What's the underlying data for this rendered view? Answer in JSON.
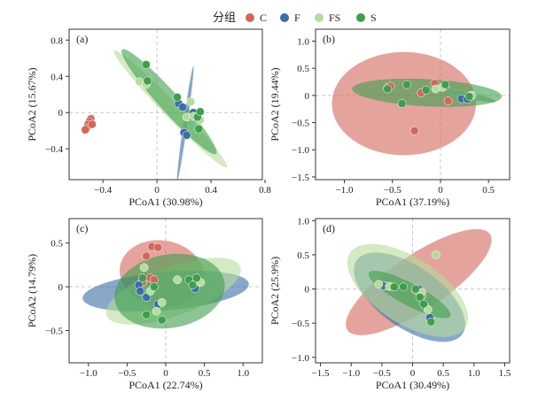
{
  "legend": {
    "title": "分组",
    "items": [
      {
        "label": "C",
        "color": "#d2675c"
      },
      {
        "label": "F",
        "color": "#3a6ea5"
      },
      {
        "label": "FS",
        "color": "#b6dc9b"
      },
      {
        "label": "S",
        "color": "#3f9e4c"
      }
    ]
  },
  "chart_data": [
    {
      "type": "scatter",
      "panel": "(a)",
      "xlabel": "PCoA1 (30.98%)",
      "ylabel": "PCoA2 (15.67%)",
      "xlim": [
        -0.65,
        0.78
      ],
      "ylim": [
        -0.74,
        0.92
      ],
      "xticks": [
        -0.4,
        0,
        0.4,
        0.8
      ],
      "yticks": [
        -0.4,
        0,
        0.4,
        0.8
      ],
      "xtick_labels": [
        "−0.4",
        "0",
        "0.4",
        "0.8"
      ],
      "ytick_labels": [
        "−0.4",
        "0",
        "0.4",
        "0.8"
      ],
      "grid": false,
      "series": [
        {
          "label": "C",
          "points": [
            [
              -0.49,
              -0.07
            ],
            [
              -0.5,
              -0.1
            ],
            [
              -0.51,
              -0.13
            ],
            [
              -0.52,
              -0.17
            ],
            [
              -0.53,
              -0.19
            ],
            [
              -0.48,
              -0.13
            ]
          ],
          "ellipse": {
            "cx": -0.505,
            "cy": -0.13,
            "a": 0.085,
            "b": 0.018,
            "angle": 63
          }
        },
        {
          "label": "F",
          "points": [
            [
              0.16,
              0.1
            ],
            [
              0.19,
              0.06
            ],
            [
              0.2,
              -0.22
            ],
            [
              0.22,
              -0.25
            ],
            [
              0.24,
              -0.05
            ],
            [
              0.27,
              0.0
            ]
          ],
          "ellipse": {
            "cx": 0.21,
            "cy": -0.12,
            "a": 0.43,
            "b": 0.022,
            "angle": 82
          }
        },
        {
          "label": "FS",
          "points": [
            [
              -0.13,
              0.34
            ],
            [
              -0.08,
              0.31
            ],
            [
              0.22,
              -0.05
            ],
            [
              0.27,
              -0.04
            ],
            [
              0.32,
              -0.08
            ],
            [
              0.25,
              0.12
            ]
          ],
          "ellipse": {
            "cx": 0.1,
            "cy": 0.04,
            "a": 0.6,
            "b": 0.085,
            "angle": -46
          }
        },
        {
          "label": "S",
          "points": [
            [
              -0.08,
              0.53
            ],
            [
              -0.07,
              0.35
            ],
            [
              0.15,
              0.17
            ],
            [
              0.3,
              -0.05
            ],
            [
              0.31,
              -0.18
            ],
            [
              0.32,
              0.01
            ]
          ],
          "ellipse": {
            "cx": 0.09,
            "cy": 0.12,
            "a": 0.52,
            "b": 0.11,
            "angle": -48
          }
        }
      ]
    },
    {
      "type": "scatter",
      "panel": "(b)",
      "xlabel": "PCoA1 (37.19%)",
      "ylabel": "PCoA2 (19.44%)",
      "xlim": [
        -1.3,
        0.72
      ],
      "ylim": [
        -1.55,
        1.22
      ],
      "xticks": [
        -1.0,
        -0.5,
        0,
        0.5
      ],
      "yticks": [
        -1.5,
        -1.0,
        -0.5,
        0,
        0.5,
        1.0
      ],
      "xtick_labels": [
        "−1.0",
        "−0.5",
        "0",
        "0.5"
      ],
      "ytick_labels": [
        "−1.5",
        "−1.0",
        "−0.5",
        "0",
        "0.5",
        "1.0"
      ],
      "grid": false,
      "series": [
        {
          "label": "C",
          "points": [
            [
              -0.55,
              0.15
            ],
            [
              -0.52,
              0.17
            ],
            [
              -0.06,
              0.22
            ],
            [
              0.08,
              -0.1
            ],
            [
              -0.27,
              -0.65
            ],
            [
              -0.2,
              0.05
            ]
          ],
          "ellipse": {
            "cx": -0.38,
            "cy": -0.15,
            "a": 0.75,
            "b": 0.95,
            "angle": 0
          }
        },
        {
          "label": "F",
          "points": [
            [
              0.05,
              0.17
            ],
            [
              0.22,
              -0.06
            ],
            [
              0.28,
              -0.07
            ],
            [
              0.33,
              0.0
            ]
          ],
          "ellipse": {
            "cx": 0.28,
            "cy": 0.0,
            "a": 0.3,
            "b": 0.05,
            "angle": -12
          }
        },
        {
          "label": "FS",
          "points": [
            [
              0.02,
              0.15
            ],
            [
              0.32,
              0.0
            ],
            [
              -0.05,
              0.12
            ]
          ],
          "ellipse": {
            "cx": 0.25,
            "cy": 0.02,
            "a": 0.3,
            "b": 0.08,
            "angle": -12
          }
        },
        {
          "label": "S",
          "points": [
            [
              -0.55,
              0.12
            ],
            [
              -0.35,
              0.2
            ],
            [
              -0.15,
              0.1
            ],
            [
              -0.4,
              -0.15
            ],
            [
              0.05,
              0.2
            ],
            [
              0.3,
              -0.02
            ]
          ],
          "ellipse": {
            "cx": -0.14,
            "cy": 0.05,
            "a": 0.78,
            "b": 0.25,
            "angle": -3
          }
        }
      ]
    },
    {
      "type": "scatter",
      "panel": "(c)",
      "xlabel": "PCoA1 (22.74%)",
      "ylabel": "PCoA2 (14.79%)",
      "xlim": [
        -1.25,
        1.25
      ],
      "ylim": [
        -0.87,
        0.78
      ],
      "xticks": [
        -1.0,
        -0.5,
        0,
        0.5,
        1.0
      ],
      "yticks": [
        -0.5,
        0,
        0.5
      ],
      "xtick_labels": [
        "−1.0",
        "−0.5",
        "0",
        "0.5",
        "1.0"
      ],
      "ytick_labels": [
        "−0.5",
        "0",
        "0.5"
      ],
      "grid": false,
      "series": [
        {
          "label": "C",
          "points": [
            [
              -0.18,
              0.46
            ],
            [
              -0.1,
              0.45
            ],
            [
              -0.25,
              0.35
            ],
            [
              -0.2,
              0.1
            ],
            [
              -0.15,
              0.08
            ],
            [
              -0.3,
              0.05
            ]
          ],
          "ellipse": {
            "cx": -0.05,
            "cy": 0.15,
            "a": 0.55,
            "b": 0.38,
            "angle": -10
          }
        },
        {
          "label": "F",
          "points": [
            [
              -0.35,
              0.02
            ],
            [
              -0.33,
              -0.05
            ],
            [
              -0.25,
              -0.12
            ],
            [
              0.42,
              0.05
            ],
            [
              0.38,
              -0.02
            ],
            [
              -0.1,
              -0.2
            ]
          ],
          "ellipse": {
            "cx": 0.0,
            "cy": -0.05,
            "a": 1.08,
            "b": 0.22,
            "angle": 5
          }
        },
        {
          "label": "FS",
          "points": [
            [
              -0.28,
              0.22
            ],
            [
              -0.2,
              -0.05
            ],
            [
              -0.05,
              -0.18
            ],
            [
              0.15,
              0.08
            ],
            [
              0.45,
              0.05
            ],
            [
              -0.12,
              -0.28
            ]
          ],
          "ellipse": {
            "cx": 0.1,
            "cy": -0.05,
            "a": 0.92,
            "b": 0.28,
            "angle": 20
          }
        },
        {
          "label": "S",
          "points": [
            [
              -0.3,
              0.1
            ],
            [
              -0.15,
              0.0
            ],
            [
              0.3,
              0.08
            ],
            [
              0.35,
              0.02
            ],
            [
              -0.25,
              -0.32
            ],
            [
              -0.05,
              -0.38
            ],
            [
              0.4,
              0.1
            ]
          ],
          "ellipse": {
            "cx": 0.05,
            "cy": -0.05,
            "a": 0.72,
            "b": 0.42,
            "angle": 10
          }
        }
      ]
    },
    {
      "type": "scatter",
      "panel": "(d)",
      "xlabel": "PCoA1 (30.49%)",
      "ylabel": "PCoA2 (25.9%)",
      "xlim": [
        -1.58,
        1.58
      ],
      "ylim": [
        -1.08,
        1.03
      ],
      "xticks": [
        -1.5,
        -1.0,
        -0.5,
        0,
        0.5,
        1.0,
        1.5
      ],
      "yticks": [
        -1.0,
        -0.5,
        0,
        0.5,
        1.0
      ],
      "xtick_labels": [
        "−1.5",
        "−1.0",
        "−0.5",
        "0",
        "0.5",
        "1.0",
        "1.5"
      ],
      "ytick_labels": [
        "−1.0",
        "−0.5",
        "0",
        "0.5",
        "1.0"
      ],
      "grid": false,
      "series": [
        {
          "label": "C",
          "points": [
            [
              -0.45,
              0.05
            ],
            [
              0.05,
              -0.02
            ],
            [
              0.15,
              -0.1
            ]
          ],
          "ellipse": {
            "cx": 0.1,
            "cy": 0.1,
            "a": 1.4,
            "b": 0.4,
            "angle": 34
          }
        },
        {
          "label": "F",
          "points": [
            [
              -0.48,
              0.05
            ],
            [
              -0.35,
              0.03
            ],
            [
              0.2,
              -0.25
            ],
            [
              0.28,
              -0.42
            ],
            [
              0.1,
              0.0
            ]
          ],
          "ellipse": {
            "cx": -0.05,
            "cy": -0.12,
            "a": 1.05,
            "b": 0.45,
            "angle": -35
          }
        },
        {
          "label": "FS",
          "points": [
            [
              -0.55,
              0.07
            ],
            [
              -0.38,
              0.04
            ],
            [
              0.38,
              0.5
            ],
            [
              0.15,
              -0.05
            ],
            [
              0.25,
              -0.3
            ]
          ],
          "ellipse": {
            "cx": -0.08,
            "cy": -0.02,
            "a": 1.12,
            "b": 0.48,
            "angle": -33
          }
        },
        {
          "label": "S",
          "points": [
            [
              -0.3,
              0.03
            ],
            [
              -0.15,
              0.03
            ],
            [
              0.05,
              0.0
            ],
            [
              0.12,
              -0.12
            ],
            [
              0.18,
              -0.22
            ],
            [
              0.3,
              -0.48
            ]
          ],
          "ellipse": {
            "cx": -0.05,
            "cy": -0.08,
            "a": 0.75,
            "b": 0.16,
            "angle": -28
          }
        }
      ]
    }
  ]
}
